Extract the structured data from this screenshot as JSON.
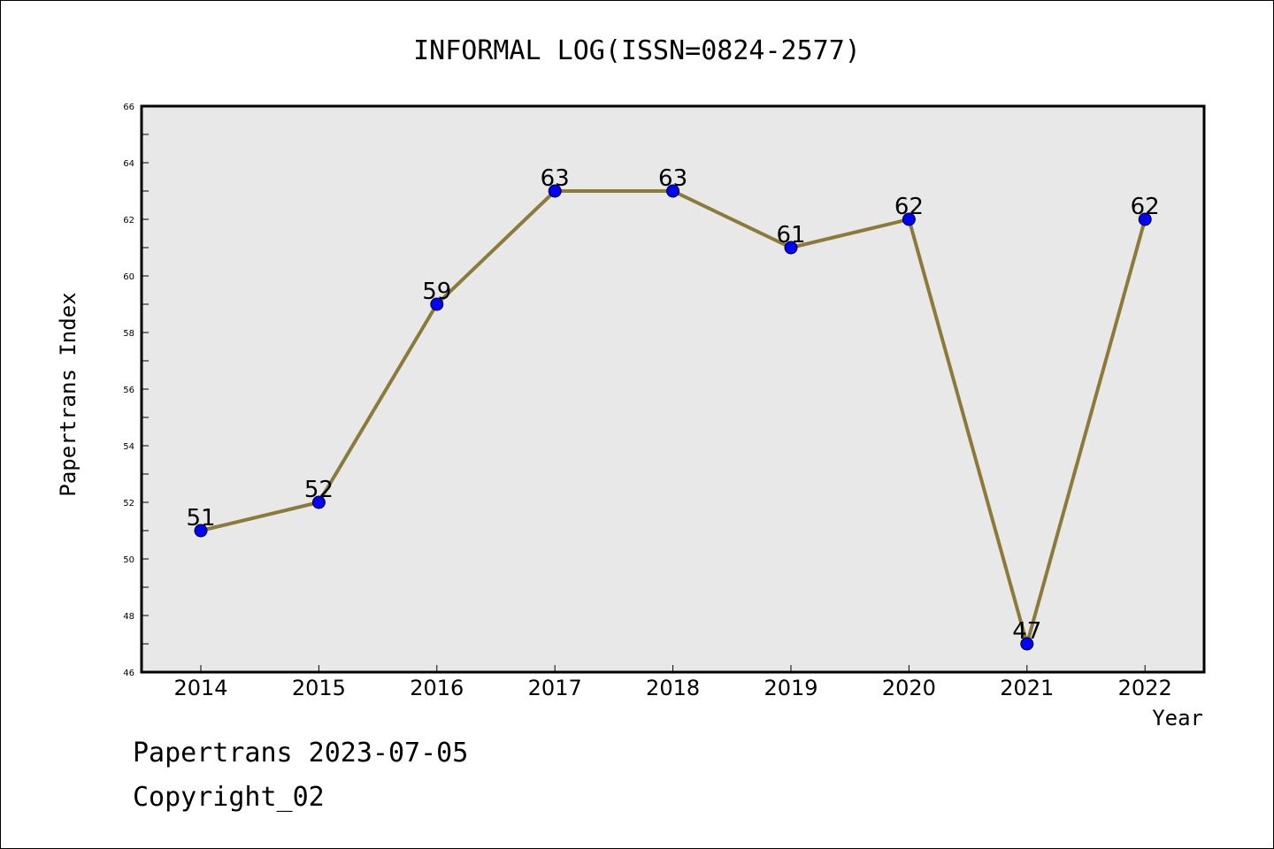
{
  "chart_data": {
    "type": "line",
    "title": "INFORMAL LOG(ISSN=0824-2577)",
    "xlabel": "Year",
    "ylabel": "Papertrans Index",
    "categories": [
      "2014",
      "2015",
      "2016",
      "2017",
      "2018",
      "2019",
      "2020",
      "2021",
      "2022"
    ],
    "series": [
      {
        "values": [
          51,
          52,
          59,
          63,
          63,
          61,
          62,
          47,
          62
        ]
      }
    ],
    "ylim": [
      46,
      66
    ],
    "yticks": [
      46,
      48,
      50,
      52,
      54,
      56,
      58,
      60,
      62,
      64,
      66
    ],
    "grid": false,
    "legend": "none",
    "colors": {
      "line": "#8b7a3a",
      "marker": "#0000ff",
      "plot_bg": "#e8e8e8"
    }
  },
  "footer": {
    "line1": "Papertrans 2023-07-05",
    "line2": "Copyright_02"
  }
}
